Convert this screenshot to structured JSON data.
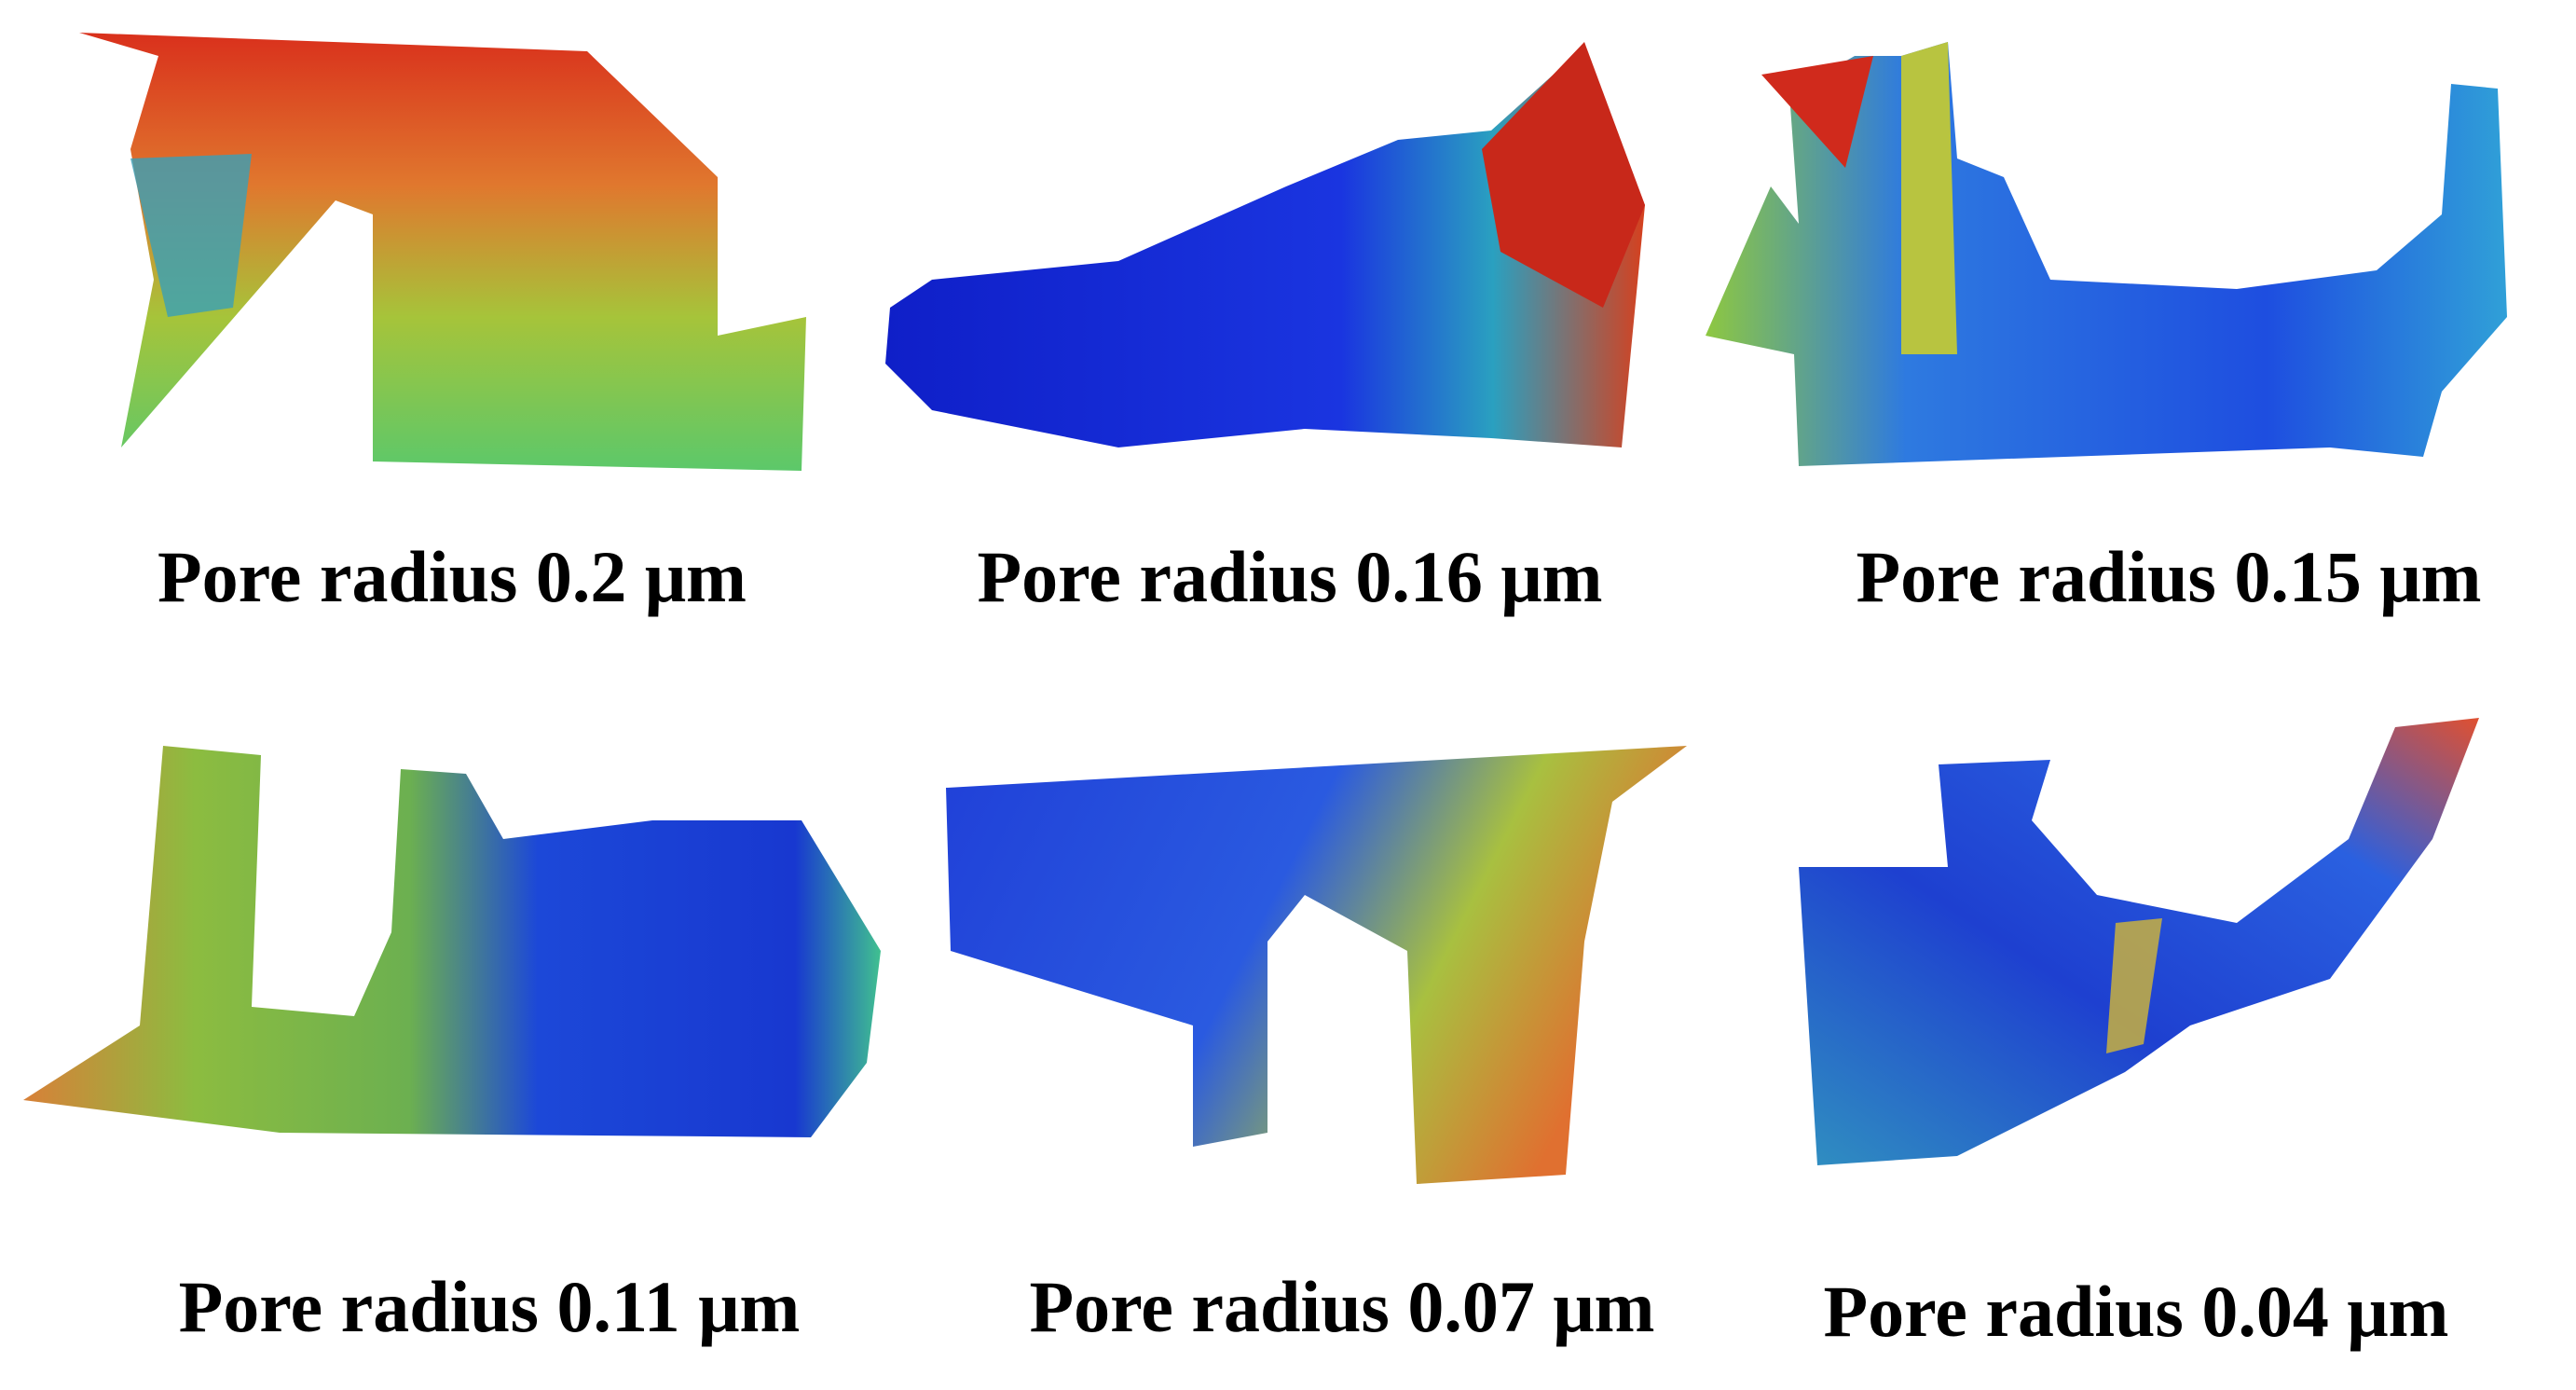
{
  "panels": [
    {
      "label": "Pore radius 0.2 μm"
    },
    {
      "label": "Pore radius 0.16 μm"
    },
    {
      "label": "Pore radius 0.15 μm"
    },
    {
      "label": "Pore radius 0.11 μm"
    },
    {
      "label": "Pore radius 0.07 μm"
    },
    {
      "label": "Pore radius 0.04 μm"
    }
  ]
}
